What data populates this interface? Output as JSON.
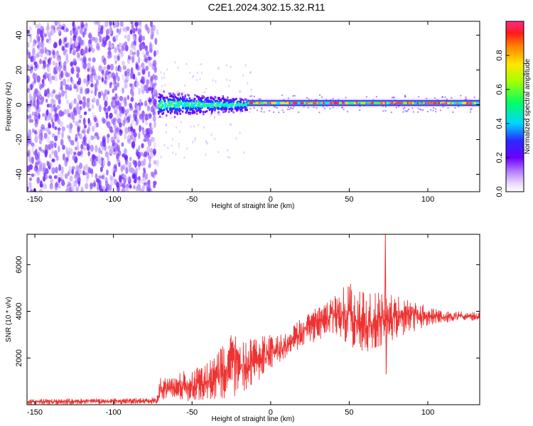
{
  "title": "C2E1.2024.302.15.32.R11",
  "colors": {
    "snr_line": "#ee3333",
    "scatter_purple": "#7a2fff",
    "axis": "#000000"
  },
  "chart_data": [
    {
      "type": "heatmap",
      "xlabel": "Height of straight line (km)",
      "ylabel": "Frequency (Hz)",
      "xlim": [
        -155,
        133
      ],
      "ylim": [
        -50,
        48
      ],
      "xticks": [
        -150,
        -100,
        -50,
        0,
        50,
        100
      ],
      "yticks": [
        -40,
        -20,
        0,
        20,
        40
      ],
      "colorbar": {
        "label": "Normalized spectral amplitude",
        "range": [
          0.0,
          1.0
        ],
        "ticks": [
          0.0,
          0.2,
          0.4,
          0.6,
          0.8
        ],
        "tick_labels": [
          "0.0",
          "0.2",
          "0.4",
          "0.6",
          "0.8"
        ],
        "colormap": "rainbow"
      },
      "regions": [
        {
          "description_x": [
            -155,
            -72
          ],
          "frequency_range": [
            -50,
            48
          ],
          "amplitude": "low",
          "pattern": "broadband"
        },
        {
          "description_x": [
            -72,
            -15
          ],
          "frequency_range": [
            -8,
            8
          ],
          "amplitude": "medium"
        },
        {
          "description_x": [
            -15,
            133
          ],
          "frequency_range": [
            -3,
            3
          ],
          "amplitude": "high"
        }
      ]
    },
    {
      "type": "line",
      "xlabel": "Height of straight line (km)",
      "ylabel": "SNR (10 * v/v)",
      "xlim": [
        -155,
        133
      ],
      "ylim": [
        0,
        7300
      ],
      "xticks": [
        -150,
        -100,
        -50,
        0,
        50,
        100
      ],
      "yticks": [
        2000,
        4000,
        6000
      ],
      "grid": false,
      "envelope": [
        {
          "x": -155,
          "low": 0,
          "high": 250
        },
        {
          "x": -73,
          "low": 30,
          "high": 300
        },
        {
          "x": -70,
          "low": 100,
          "high": 1200
        },
        {
          "x": -60,
          "low": 100,
          "high": 1400
        },
        {
          "x": -50,
          "low": 150,
          "high": 1500
        },
        {
          "x": -40,
          "low": 200,
          "high": 1800
        },
        {
          "x": -25,
          "low": 300,
          "high": 3000
        },
        {
          "x": -15,
          "low": 600,
          "high": 2800
        },
        {
          "x": 0,
          "low": 1500,
          "high": 3000
        },
        {
          "x": 10,
          "low": 2000,
          "high": 3100
        },
        {
          "x": 20,
          "low": 2500,
          "high": 3800
        },
        {
          "x": 30,
          "low": 2700,
          "high": 4300
        },
        {
          "x": 40,
          "low": 3000,
          "high": 4600
        },
        {
          "x": 50,
          "low": 2400,
          "high": 5300
        },
        {
          "x": 60,
          "low": 2200,
          "high": 4800
        },
        {
          "x": 70,
          "low": 2500,
          "high": 4800
        },
        {
          "x": 80,
          "low": 2800,
          "high": 4700
        },
        {
          "x": 90,
          "low": 3100,
          "high": 4600
        },
        {
          "x": 100,
          "low": 3400,
          "high": 4200
        },
        {
          "x": 110,
          "low": 3500,
          "high": 4000
        },
        {
          "x": 120,
          "low": 3600,
          "high": 4000
        },
        {
          "x": 133,
          "low": 3600,
          "high": 3950
        }
      ],
      "peaks": [
        {
          "x": 73,
          "y": 7300
        },
        {
          "x": 73.5,
          "y": 1300
        }
      ]
    }
  ]
}
